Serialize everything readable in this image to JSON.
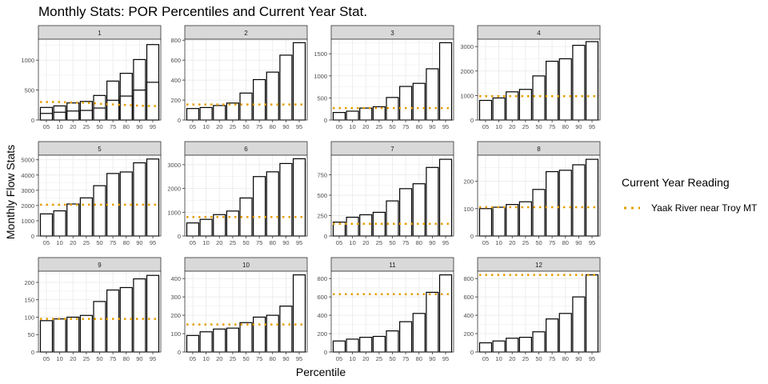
{
  "chart_data": {
    "type": "bar",
    "title": "Monthly Stats: POR Percentiles and Current Year Stat.",
    "xlabel": "Percentile",
    "ylabel": "Monthly Flow Stats",
    "categories": [
      "05",
      "10",
      "20",
      "25",
      "50",
      "75",
      "80",
      "90",
      "95"
    ],
    "grid": true,
    "legend": {
      "title": "Current Year Reading",
      "placement": "right",
      "entries": [
        {
          "name": "Yaak River near Troy MT",
          "color": "#E69F00",
          "style": "dotted-line"
        }
      ]
    },
    "colors": {
      "bar_fill": "#ffffff",
      "bar_stroke": "#000000",
      "strip_fill": "#d9d9d9",
      "reference_line": "#E69F00"
    },
    "panels": [
      {
        "label": "1",
        "ylim": [
          0,
          1350
        ],
        "yticks": [
          0,
          500,
          1000
        ],
        "values": [
          110,
          130,
          150,
          160,
          200,
          330,
          400,
          500,
          630
        ],
        "upper_values": [
          210,
          235,
          285,
          310,
          410,
          650,
          780,
          1010,
          1260
        ],
        "current_year": [
          300,
          300,
          290,
          290,
          270,
          260,
          250,
          240,
          230
        ]
      },
      {
        "label": "2",
        "ylim": [
          0,
          810
        ],
        "yticks": [
          0,
          200,
          400,
          600,
          800
        ],
        "values": [
          115,
          125,
          145,
          170,
          270,
          405,
          480,
          650,
          775
        ],
        "current_year": 155
      },
      {
        "label": "3",
        "ylim": [
          0,
          1830
        ],
        "yticks": [
          0,
          500,
          1000,
          1500
        ],
        "values": [
          170,
          200,
          270,
          300,
          510,
          760,
          830,
          1160,
          1750
        ],
        "current_year": 270
      },
      {
        "label": "4",
        "ylim": [
          0,
          3300
        ],
        "yticks": [
          0,
          1000,
          2000,
          3000
        ],
        "values": [
          800,
          900,
          1150,
          1250,
          1800,
          2400,
          2500,
          3050,
          3200
        ],
        "current_year": 970
      },
      {
        "label": "5",
        "ylim": [
          0,
          5300
        ],
        "yticks": [
          0,
          1000,
          2000,
          3000,
          4000,
          5000
        ],
        "values": [
          1450,
          1650,
          2100,
          2500,
          3300,
          4100,
          4200,
          4800,
          5050
        ],
        "current_year": 2050
      },
      {
        "label": "6",
        "ylim": [
          0,
          3400
        ],
        "yticks": [
          0,
          1000,
          2000,
          3000
        ],
        "values": [
          550,
          700,
          900,
          1050,
          1600,
          2500,
          2700,
          3050,
          3250
        ],
        "current_year": 800
      },
      {
        "label": "7",
        "ylim": [
          0,
          990
        ],
        "yticks": [
          0,
          250,
          500,
          750
        ],
        "values": [
          170,
          230,
          260,
          290,
          430,
          580,
          640,
          840,
          940
        ],
        "current_year": 150
      },
      {
        "label": "8",
        "ylim": [
          0,
          295
        ],
        "yticks": [
          0,
          100,
          200
        ],
        "values": [
          100,
          105,
          115,
          125,
          170,
          235,
          240,
          260,
          280
        ],
        "current_year": 105
      },
      {
        "label": "9",
        "ylim": [
          0,
          232
        ],
        "yticks": [
          0,
          50,
          100,
          150,
          200
        ],
        "values": [
          90,
          95,
          100,
          105,
          145,
          178,
          185,
          210,
          220
        ],
        "current_year": 95
      },
      {
        "label": "10",
        "ylim": [
          0,
          440
        ],
        "yticks": [
          0,
          100,
          200,
          300,
          400
        ],
        "values": [
          90,
          110,
          125,
          130,
          160,
          190,
          200,
          250,
          420
        ],
        "current_year": 150
      },
      {
        "label": "11",
        "ylim": [
          0,
          880
        ],
        "yticks": [
          0,
          200,
          400,
          600,
          800
        ],
        "values": [
          120,
          140,
          160,
          170,
          230,
          330,
          420,
          650,
          840
        ],
        "current_year": 630
      },
      {
        "label": "12",
        "ylim": [
          0,
          880
        ],
        "yticks": [
          0,
          200,
          400,
          600,
          800
        ],
        "values": [
          100,
          120,
          150,
          160,
          220,
          360,
          420,
          600,
          840
        ],
        "current_year": 840
      }
    ]
  }
}
